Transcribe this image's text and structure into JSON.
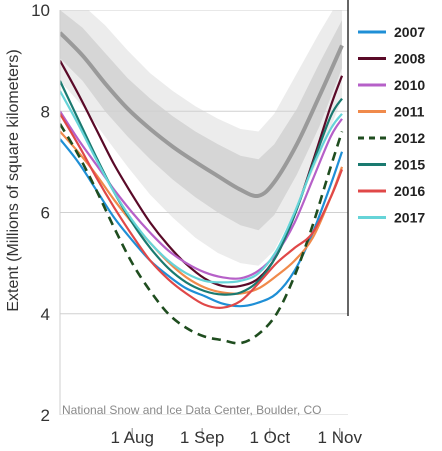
{
  "chart_data": {
    "type": "line",
    "ylabel": "Extent (Millions of square kilometers)",
    "ylim": [
      2,
      10
    ],
    "yticks": [
      2,
      4,
      6,
      8,
      10
    ],
    "xlim": [
      0,
      125
    ],
    "xticks": [
      {
        "label": "1 Aug",
        "x": 32
      },
      {
        "label": "1 Sep",
        "x": 63
      },
      {
        "label": "1 Oct",
        "x": 93
      },
      {
        "label": "1 Nov",
        "x": 124
      }
    ],
    "credit": "National Snow and Ice Data Center, Boulder, CO",
    "median": {
      "color": "#9a9a9a",
      "x": [
        0,
        10,
        20,
        30,
        40,
        50,
        60,
        70,
        80,
        88,
        95,
        105,
        115,
        125
      ],
      "y": [
        9.55,
        9.1,
        8.55,
        8.05,
        7.65,
        7.3,
        7.0,
        6.72,
        6.45,
        6.33,
        6.6,
        7.35,
        8.3,
        9.3
      ]
    },
    "band_iqr": {
      "color": "#d6d6d6",
      "x": [
        0,
        10,
        20,
        30,
        40,
        50,
        60,
        70,
        80,
        88,
        95,
        105,
        115,
        125
      ],
      "upper": [
        10.0,
        9.65,
        9.15,
        8.65,
        8.25,
        7.9,
        7.6,
        7.35,
        7.12,
        7.05,
        7.35,
        8.05,
        8.95,
        9.8
      ],
      "lower": [
        9.05,
        8.6,
        8.0,
        7.5,
        7.05,
        6.65,
        6.3,
        6.0,
        5.75,
        5.65,
        5.95,
        6.75,
        7.7,
        8.85
      ]
    },
    "band_range": {
      "color": "#ececec",
      "x": [
        0,
        10,
        20,
        30,
        40,
        50,
        60,
        70,
        80,
        88,
        95,
        105,
        115,
        125
      ],
      "upper": [
        10.4,
        10.1,
        9.7,
        9.2,
        8.75,
        8.4,
        8.1,
        7.85,
        7.65,
        7.6,
        7.95,
        8.75,
        9.55,
        10.3
      ],
      "lower": [
        8.6,
        8.1,
        7.5,
        6.9,
        6.35,
        5.9,
        5.5,
        5.2,
        5.0,
        4.95,
        5.25,
        6.1,
        7.1,
        8.25
      ]
    },
    "series": [
      {
        "name": "2007",
        "color": "#1f8fd6",
        "dashed": false,
        "x": [
          0,
          8,
          16,
          24,
          32,
          40,
          48,
          56,
          64,
          72,
          80,
          88,
          96,
          104,
          112,
          120,
          125
        ],
        "y": [
          7.45,
          7.0,
          6.45,
          5.9,
          5.45,
          5.05,
          4.75,
          4.5,
          4.35,
          4.2,
          4.15,
          4.22,
          4.4,
          4.85,
          5.6,
          6.55,
          7.2
        ]
      },
      {
        "name": "2008",
        "color": "#5a0a28",
        "dashed": false,
        "x": [
          0,
          8,
          16,
          24,
          32,
          40,
          48,
          56,
          64,
          72,
          80,
          88,
          96,
          104,
          112,
          120,
          125
        ],
        "y": [
          9.0,
          8.35,
          7.65,
          6.95,
          6.35,
          5.8,
          5.35,
          4.98,
          4.7,
          4.55,
          4.55,
          4.7,
          5.15,
          5.95,
          7.0,
          8.1,
          8.7
        ]
      },
      {
        "name": "2010",
        "color": "#b660c8",
        "dashed": false,
        "x": [
          0,
          8,
          16,
          24,
          32,
          40,
          48,
          56,
          64,
          72,
          80,
          88,
          96,
          104,
          112,
          120,
          125
        ],
        "y": [
          8.0,
          7.45,
          6.95,
          6.45,
          6.0,
          5.6,
          5.25,
          5.0,
          4.82,
          4.72,
          4.7,
          4.85,
          5.2,
          5.8,
          6.65,
          7.5,
          7.85
        ]
      },
      {
        "name": "2011",
        "color": "#f08a4b",
        "dashed": false,
        "x": [
          0,
          8,
          16,
          24,
          32,
          40,
          48,
          56,
          64,
          72,
          80,
          88,
          96,
          104,
          112,
          120,
          125
        ],
        "y": [
          7.6,
          7.2,
          6.75,
          6.25,
          5.8,
          5.4,
          5.02,
          4.72,
          4.52,
          4.42,
          4.4,
          4.5,
          4.75,
          5.05,
          5.5,
          6.3,
          6.9
        ]
      },
      {
        "name": "2012",
        "color": "#1f4d1f",
        "dashed": true,
        "x": [
          0,
          8,
          16,
          24,
          32,
          40,
          48,
          56,
          64,
          72,
          80,
          88,
          96,
          104,
          112,
          120,
          125
        ],
        "y": [
          7.75,
          7.15,
          6.45,
          5.7,
          5.0,
          4.45,
          4.0,
          3.72,
          3.55,
          3.48,
          3.42,
          3.6,
          4.0,
          4.75,
          5.75,
          6.9,
          7.6
        ]
      },
      {
        "name": "2015",
        "color": "#1a7a70",
        "dashed": false,
        "x": [
          0,
          8,
          16,
          24,
          32,
          40,
          48,
          56,
          64,
          72,
          80,
          88,
          96,
          104,
          112,
          120,
          125
        ],
        "y": [
          8.6,
          7.85,
          7.1,
          6.4,
          5.8,
          5.3,
          4.9,
          4.62,
          4.45,
          4.38,
          4.42,
          4.65,
          5.15,
          5.95,
          6.95,
          7.9,
          8.25
        ]
      },
      {
        "name": "2016",
        "color": "#e04848",
        "dashed": false,
        "x": [
          0,
          8,
          16,
          24,
          32,
          40,
          48,
          56,
          64,
          72,
          80,
          88,
          96,
          104,
          112,
          120,
          125
        ],
        "y": [
          7.95,
          7.35,
          6.7,
          6.1,
          5.55,
          5.05,
          4.68,
          4.4,
          4.18,
          4.12,
          4.25,
          4.6,
          5.0,
          5.3,
          5.6,
          6.3,
          6.85
        ]
      },
      {
        "name": "2017",
        "color": "#66d4d8",
        "dashed": false,
        "x": [
          0,
          8,
          16,
          24,
          32,
          40,
          48,
          56,
          64,
          72,
          80,
          88,
          96,
          104,
          112,
          120,
          125
        ],
        "y": [
          8.4,
          7.75,
          7.05,
          6.4,
          5.85,
          5.4,
          5.05,
          4.8,
          4.65,
          4.62,
          4.65,
          4.8,
          5.25,
          6.0,
          6.9,
          7.65,
          7.95
        ]
      }
    ]
  }
}
